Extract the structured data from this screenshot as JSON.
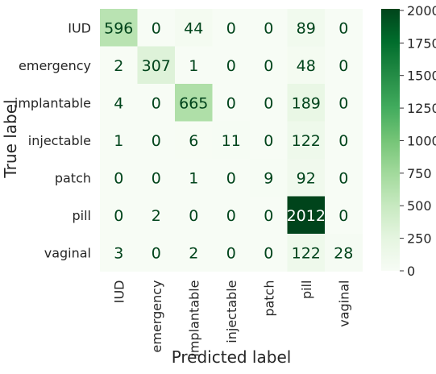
{
  "chart_data": {
    "type": "heatmap",
    "title": "",
    "xlabel": "Predicted label",
    "ylabel": "True label",
    "x_categories": [
      "IUD",
      "emergency",
      "implantable",
      "injectable",
      "patch",
      "pill",
      "vaginal"
    ],
    "y_categories": [
      "IUD",
      "emergency",
      "implantable",
      "injectable",
      "patch",
      "pill",
      "vaginal"
    ],
    "values": [
      [
        596,
        0,
        44,
        0,
        0,
        89,
        0
      ],
      [
        2,
        307,
        1,
        0,
        0,
        48,
        0
      ],
      [
        4,
        0,
        665,
        0,
        0,
        189,
        0
      ],
      [
        1,
        0,
        6,
        11,
        0,
        122,
        0
      ],
      [
        0,
        0,
        1,
        0,
        9,
        92,
        0
      ],
      [
        0,
        2,
        0,
        0,
        0,
        2012,
        0
      ],
      [
        3,
        0,
        2,
        0,
        0,
        122,
        28
      ]
    ],
    "colorbar": {
      "min": 0,
      "max": 2012,
      "ticks": [
        0,
        250,
        500,
        750,
        1000,
        1250,
        1500,
        1750,
        2000
      ],
      "colormap": "Greens",
      "low_color": "#f7fcf5",
      "high_color": "#00441b"
    },
    "grid": false
  }
}
